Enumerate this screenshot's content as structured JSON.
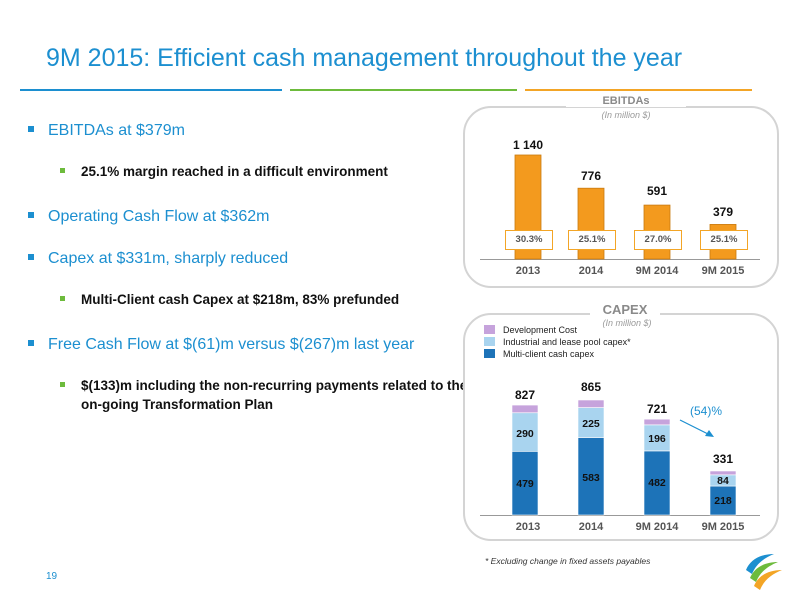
{
  "header": {
    "title": "9M 2015: Efficient cash management throughout the year"
  },
  "bullets": [
    {
      "level": 1,
      "text": "EBITDAs at $379m"
    },
    {
      "level": 2,
      "text": "25.1% margin reached in a difficult environment"
    },
    {
      "level": 1,
      "text": "Operating Cash Flow at $362m"
    },
    {
      "level": 1,
      "text": "Capex at $331m, sharply reduced"
    },
    {
      "level": 2,
      "text": "Multi-Client cash Capex at $218m, 83% prefunded"
    },
    {
      "level": 1,
      "text": "Free Cash Flow at $(61)m versus $(267)m last year"
    },
    {
      "level": 2,
      "text": "$(133)m including the non-recurring payments related to the on-going Transformation Plan"
    }
  ],
  "colors": {
    "accent_blue": "#1c8fd0",
    "accent_green": "#6dbb3c",
    "accent_orange": "#f3a526",
    "bar_orange": "#f39a1e",
    "mc_blue": "#1d73b8",
    "ind_light_blue": "#a9d4ef",
    "dev_purple": "#c6a3dc"
  },
  "chart_data": [
    {
      "type": "bar",
      "title": "EBITDAs",
      "subtitle": "(In million $)",
      "categories": [
        "2013",
        "2014",
        "9M 2014",
        "9M 2015"
      ],
      "values": [
        1140,
        776,
        591,
        379
      ],
      "value_labels": [
        "1 140",
        "776",
        "591",
        "379"
      ],
      "margins": [
        "30.3%",
        "25.1%",
        "27.0%",
        "25.1%"
      ],
      "ylim": [
        0,
        1140
      ],
      "grid": false
    },
    {
      "type": "bar",
      "stacked": true,
      "title": "CAPEX",
      "subtitle": "(In million $)",
      "categories": [
        "2013",
        "2014",
        "9M 2014",
        "9M 2015"
      ],
      "series": [
        {
          "name": "Multi-client cash capex",
          "values": [
            479,
            583,
            482,
            218
          ]
        },
        {
          "name": "Industrial and lease pool capex*",
          "values": [
            290,
            225,
            196,
            84
          ]
        },
        {
          "name": "Development Cost",
          "values": [
            58,
            57,
            43,
            29
          ]
        }
      ],
      "totals": [
        "827",
        "865",
        "721",
        "331"
      ],
      "annotation": "(54)%",
      "legend": "top-left",
      "ylim": [
        0,
        865
      ],
      "grid": false
    }
  ],
  "footnote": "* Excluding change in fixed assets payables",
  "page_number": "19"
}
